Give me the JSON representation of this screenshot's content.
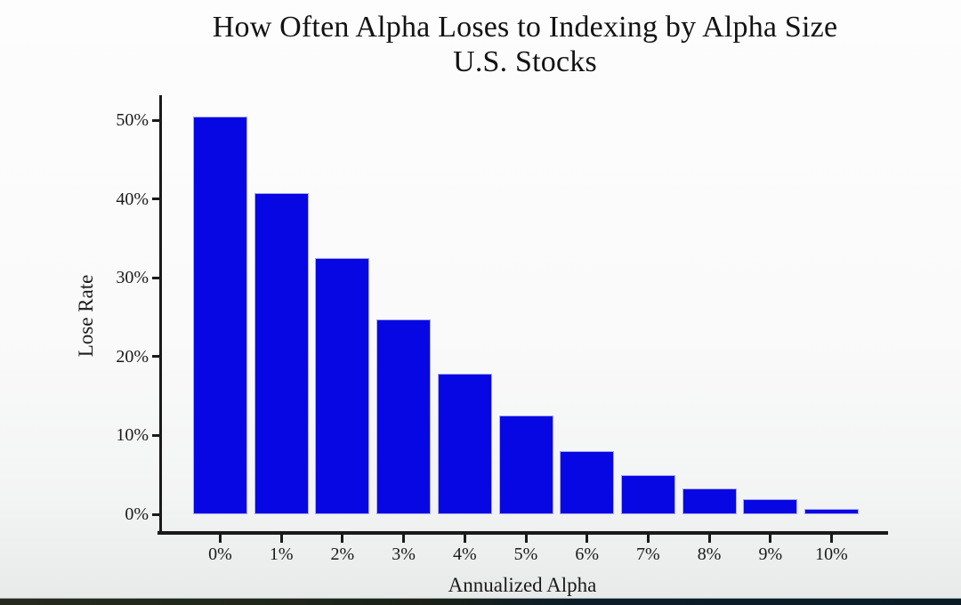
{
  "chart_data": {
    "type": "bar",
    "title": "How Often Alpha Loses to Indexing by Alpha Size",
    "subtitle": "U.S. Stocks",
    "xlabel": "Annualized Alpha",
    "ylabel": "Lose Rate",
    "categories": [
      "0%",
      "1%",
      "2%",
      "3%",
      "4%",
      "5%",
      "6%",
      "7%",
      "8%",
      "9%",
      "10%"
    ],
    "values": [
      50.4,
      40.8,
      32.5,
      24.7,
      17.8,
      12.5,
      8.0,
      5.0,
      3.3,
      1.9,
      0.7
    ],
    "y_tick_labels": [
      "0%",
      "10%",
      "20%",
      "30%",
      "40%",
      "50%"
    ],
    "y_tick_values": [
      0,
      10,
      20,
      30,
      40,
      50
    ],
    "ylim": [
      0,
      52
    ],
    "grid": false,
    "legend": null,
    "bar_color": "#0707e3",
    "bar_border_color": "#a9aaee",
    "axis_color": "#1a1a1a",
    "text_color": "#131313"
  }
}
